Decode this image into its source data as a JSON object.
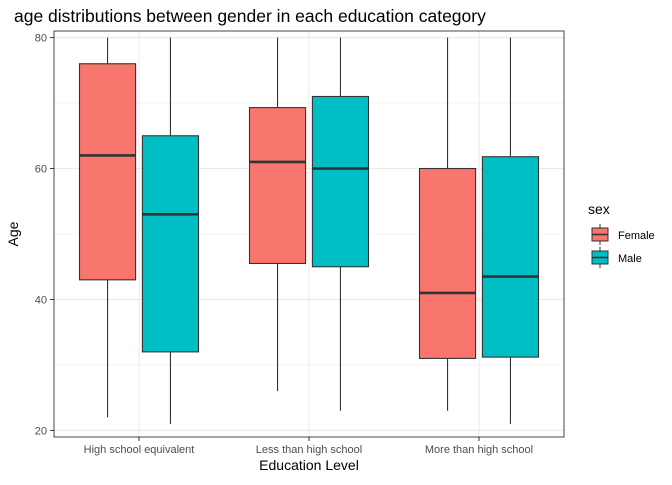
{
  "chart_data": {
    "type": "boxplot",
    "title": "age distributions between gender in each education category",
    "xlabel": "Education Level",
    "ylabel": "Age",
    "ylim": [
      19,
      81
    ],
    "yticks": [
      20,
      40,
      60,
      80
    ],
    "grid": true,
    "legend_position": "right",
    "categories": [
      "High school equivalent",
      "Less than high school",
      "More than high school"
    ],
    "legend": {
      "title": "sex",
      "entries": [
        "Female",
        "Male"
      ]
    },
    "series": [
      {
        "name": "Female",
        "color": "#F8766D",
        "boxes": [
          {
            "min": 22,
            "q1": 43,
            "median": 62,
            "q3": 76,
            "max": 80
          },
          {
            "min": 26,
            "q1": 45.5,
            "median": 61,
            "q3": 69.3,
            "max": 80
          },
          {
            "min": 23,
            "q1": 31,
            "median": 41,
            "q3": 60,
            "max": 80
          }
        ]
      },
      {
        "name": "Male",
        "color": "#00BFC4",
        "boxes": [
          {
            "min": 21,
            "q1": 32,
            "median": 53,
            "q3": 65,
            "max": 80
          },
          {
            "min": 23,
            "q1": 45,
            "median": 60,
            "q3": 71,
            "max": 80
          },
          {
            "min": 21,
            "q1": 31.2,
            "median": 43.5,
            "q3": 61.8,
            "max": 80
          }
        ]
      }
    ]
  }
}
